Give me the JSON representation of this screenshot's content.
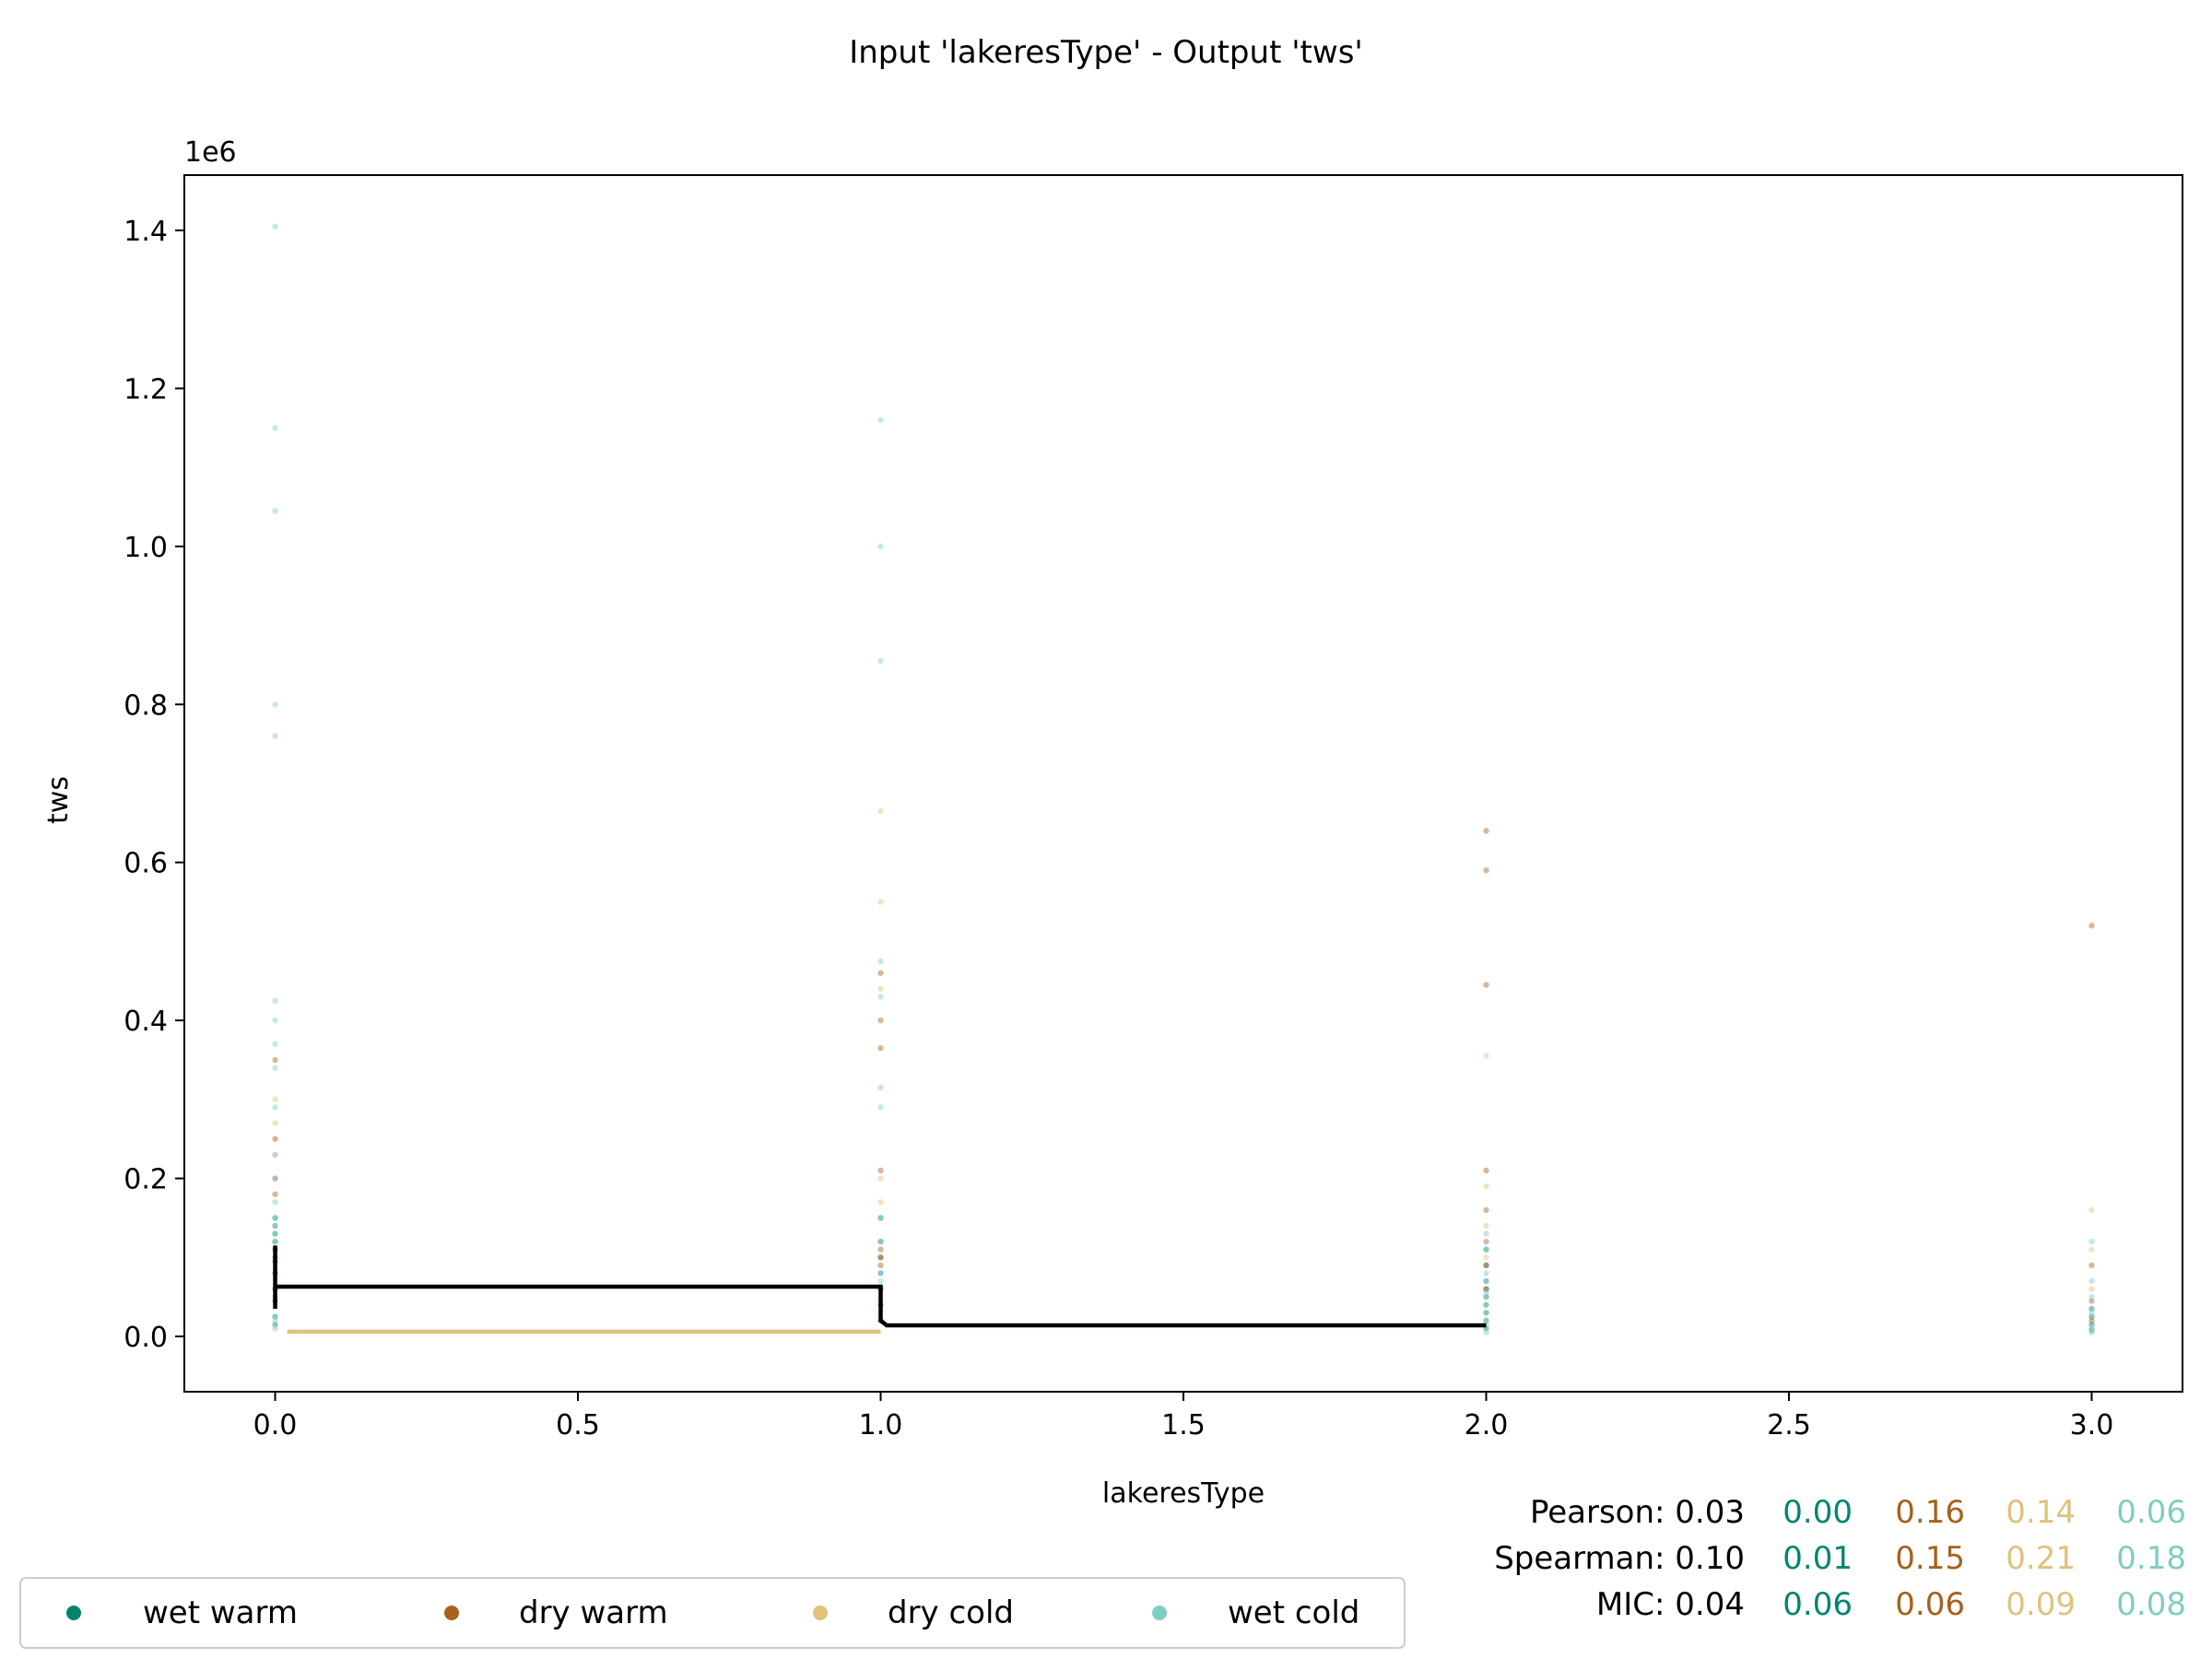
{
  "chart_data": {
    "type": "scatter",
    "title": "Input 'lakeresType' - Output 'tws'",
    "xlabel": "lakeresType",
    "ylabel": "tws",
    "y_offset_label": "1e6",
    "xlim": [
      -0.15,
      3.15
    ],
    "ylim": [
      -70000,
      1470000
    ],
    "x_ticks": [
      0.0,
      0.5,
      1.0,
      1.5,
      2.0,
      2.5,
      3.0
    ],
    "x_tick_labels": [
      "0.0",
      "0.5",
      "1.0",
      "1.5",
      "2.0",
      "2.5",
      "3.0"
    ],
    "y_ticks": [
      0,
      200000,
      400000,
      600000,
      800000,
      1000000,
      1200000,
      1400000
    ],
    "y_tick_labels": [
      "0.0",
      "0.2",
      "0.4",
      "0.6",
      "0.8",
      "1.0",
      "1.2",
      "1.4"
    ],
    "legend_position": "bottom-left",
    "series": [
      {
        "name": "wet warm",
        "color": "#018571",
        "points": [
          [
            0,
            150000
          ],
          [
            0,
            140000
          ],
          [
            0,
            130000
          ],
          [
            0,
            120000
          ],
          [
            0,
            110000
          ],
          [
            0,
            95000
          ],
          [
            0,
            80000
          ],
          [
            0,
            60000
          ],
          [
            0,
            45000
          ],
          [
            0,
            25000
          ],
          [
            0,
            15000
          ],
          [
            1,
            150000
          ],
          [
            1,
            120000
          ],
          [
            1,
            100000
          ],
          [
            1,
            80000
          ],
          [
            1,
            60000
          ],
          [
            1,
            40000
          ],
          [
            1,
            20000
          ],
          [
            2,
            110000
          ],
          [
            2,
            90000
          ],
          [
            2,
            70000
          ],
          [
            2,
            60000
          ],
          [
            2,
            50000
          ],
          [
            2,
            40000
          ],
          [
            2,
            30000
          ],
          [
            2,
            20000
          ],
          [
            2,
            10000
          ],
          [
            3,
            35000
          ],
          [
            3,
            25000
          ],
          [
            3,
            15000
          ],
          [
            3,
            8000
          ]
        ]
      },
      {
        "name": "dry warm",
        "color": "#a6611a",
        "points": [
          [
            0,
            350000
          ],
          [
            0,
            250000
          ],
          [
            0,
            200000
          ],
          [
            0,
            180000
          ],
          [
            0,
            100000
          ],
          [
            1,
            460000
          ],
          [
            1,
            400000
          ],
          [
            1,
            365000
          ],
          [
            1,
            210000
          ],
          [
            1,
            110000
          ],
          [
            1,
            100000
          ],
          [
            1,
            90000
          ],
          [
            2,
            640000
          ],
          [
            2,
            590000
          ],
          [
            2,
            445000
          ],
          [
            2,
            210000
          ],
          [
            2,
            160000
          ],
          [
            2,
            120000
          ],
          [
            2,
            90000
          ],
          [
            2,
            60000
          ],
          [
            3,
            520000
          ],
          [
            3,
            90000
          ],
          [
            3,
            45000
          ],
          [
            3,
            20000
          ]
        ]
      },
      {
        "name": "dry cold",
        "color": "#dfc27d",
        "points": [
          [
            0,
            300000
          ],
          [
            0,
            270000
          ],
          [
            0,
            230000
          ],
          [
            1,
            665000
          ],
          [
            1,
            550000
          ],
          [
            1,
            440000
          ],
          [
            1,
            200000
          ],
          [
            1,
            170000
          ],
          [
            2,
            355000
          ],
          [
            2,
            190000
          ],
          [
            2,
            140000
          ],
          [
            2,
            100000
          ],
          [
            3,
            160000
          ],
          [
            3,
            110000
          ],
          [
            3,
            60000
          ]
        ]
      },
      {
        "name": "wet cold",
        "color": "#80cdc1",
        "points": [
          [
            0,
            1405000
          ],
          [
            0,
            1150000
          ],
          [
            0,
            1045000
          ],
          [
            0,
            800000
          ],
          [
            0,
            760000
          ],
          [
            0,
            425000
          ],
          [
            0,
            400000
          ],
          [
            0,
            370000
          ],
          [
            0,
            340000
          ],
          [
            0,
            290000
          ],
          [
            0,
            230000
          ],
          [
            0,
            200000
          ],
          [
            0,
            170000
          ],
          [
            0,
            150000
          ],
          [
            0,
            120000
          ],
          [
            0,
            80000
          ],
          [
            0,
            50000
          ],
          [
            0,
            20000
          ],
          [
            0,
            10000
          ],
          [
            1,
            1160000
          ],
          [
            1,
            1000000
          ],
          [
            1,
            855000
          ],
          [
            1,
            475000
          ],
          [
            1,
            430000
          ],
          [
            1,
            315000
          ],
          [
            1,
            290000
          ],
          [
            1,
            150000
          ],
          [
            1,
            120000
          ],
          [
            1,
            70000
          ],
          [
            1,
            40000
          ],
          [
            2,
            130000
          ],
          [
            2,
            110000
          ],
          [
            2,
            80000
          ],
          [
            2,
            55000
          ],
          [
            2,
            30000
          ],
          [
            2,
            15000
          ],
          [
            2,
            5000
          ],
          [
            3,
            120000
          ],
          [
            3,
            70000
          ],
          [
            3,
            50000
          ],
          [
            3,
            30000
          ],
          [
            3,
            10000
          ],
          [
            3,
            5000
          ]
        ]
      }
    ],
    "step_lines": [
      {
        "name": "",
        "color": "#000000",
        "points": [
          [
            0,
            115000
          ],
          [
            0,
            35000
          ],
          [
            0,
            63000
          ],
          [
            1,
            63000
          ],
          [
            1,
            20000
          ],
          [
            1.01,
            14000
          ],
          [
            2,
            14000
          ]
        ]
      },
      {
        "name": "",
        "color": "#dfc27d",
        "points": [
          [
            0.02,
            6000
          ],
          [
            1,
            6000
          ]
        ]
      }
    ],
    "stats": {
      "rows": [
        {
          "label": "Pearson:",
          "overall": "0.03",
          "values": [
            "0.00",
            "0.16",
            "0.14",
            "0.06"
          ]
        },
        {
          "label": "Spearman:",
          "overall": "0.10",
          "values": [
            "0.01",
            "0.15",
            "0.21",
            "0.18"
          ]
        },
        {
          "label": "MIC:",
          "overall": "0.04",
          "values": [
            "0.06",
            "0.06",
            "0.09",
            "0.08"
          ]
        }
      ],
      "colors": [
        "#018571",
        "#a6611a",
        "#dfc27d",
        "#80cdc1"
      ]
    }
  }
}
